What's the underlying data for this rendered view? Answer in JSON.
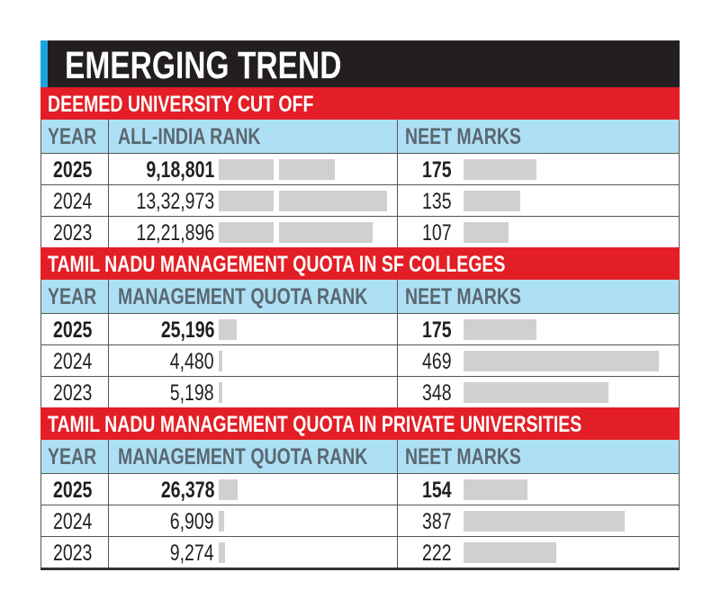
{
  "chart_data": {
    "type": "table",
    "title": "EMERGING TREND",
    "colors": {
      "title_bg": "#231f20",
      "accent_stripe": "#1aa3dd",
      "section_bg": "#e31e26",
      "header_bg": "#aee0f5",
      "bar": "#d0d0d2"
    },
    "sections": [
      {
        "heading": "DEEMED UNIVERSITY CUT OFF",
        "columns": [
          "YEAR",
          "ALL-INDIA RANK",
          "NEET MARKS"
        ],
        "rows": [
          {
            "year": "2025",
            "rank_label": "9,18,801",
            "rank": 918801,
            "marks_label": "175",
            "marks": 175
          },
          {
            "year": "2024",
            "rank_label": "13,32,973",
            "rank": 1332973,
            "marks_label": "135",
            "marks": 135
          },
          {
            "year": "2023",
            "rank_label": "12,21,896",
            "rank": 1221896,
            "marks_label": "107",
            "marks": 107
          }
        ]
      },
      {
        "heading": "TAMIL NADU MANAGEMENT QUOTA IN SF COLLEGES",
        "columns": [
          "YEAR",
          "MANAGEMENT QUOTA RANK",
          "NEET MARKS"
        ],
        "rows": [
          {
            "year": "2025",
            "rank_label": "25,196",
            "rank": 25196,
            "marks_label": "175",
            "marks": 175
          },
          {
            "year": "2024",
            "rank_label": "4,480",
            "rank": 4480,
            "marks_label": "469",
            "marks": 469
          },
          {
            "year": "2023",
            "rank_label": "5,198",
            "rank": 5198,
            "marks_label": "348",
            "marks": 348
          }
        ]
      },
      {
        "heading": "TAMIL NADU MANAGEMENT QUOTA IN PRIVATE UNIVERSITIES",
        "columns": [
          "YEAR",
          "MANAGEMENT QUOTA RANK",
          "NEET MARKS"
        ],
        "rows": [
          {
            "year": "2025",
            "rank_label": "26,378",
            "rank": 26378,
            "marks_label": "154",
            "marks": 154
          },
          {
            "year": "2024",
            "rank_label": "6,909",
            "rank": 6909,
            "marks_label": "387",
            "marks": 387
          },
          {
            "year": "2023",
            "rank_label": "9,274",
            "rank": 9274,
            "marks_label": "222",
            "marks": 222
          }
        ]
      }
    ]
  }
}
